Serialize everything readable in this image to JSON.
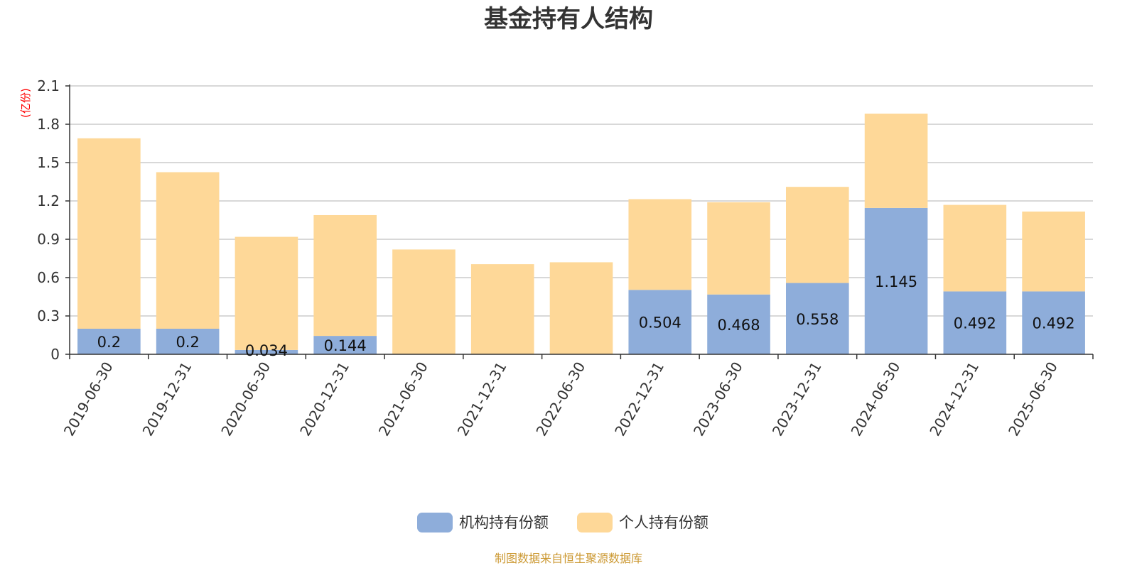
{
  "colors": {
    "institution": "#8eadda",
    "individual": "#fed898",
    "grid": "#cccccc",
    "axis": "#333333",
    "unit": "#ff0000",
    "source": "#cc9933"
  },
  "chart_data": {
    "type": "bar",
    "stacked": true,
    "title": "基金持有人结构",
    "ylabel": "(亿份)",
    "ylim": [
      0,
      2.1
    ],
    "yticks": [
      "0",
      "0.3",
      "0.6",
      "0.9",
      "1.2",
      "1.5",
      "1.8",
      "2.1"
    ],
    "grid": true,
    "legend_position": "bottom-center",
    "categories": [
      "2019-06-30",
      "2019-12-31",
      "2020-06-30",
      "2020-12-31",
      "2021-06-30",
      "2021-12-31",
      "2022-06-30",
      "2022-12-31",
      "2023-06-30",
      "2023-12-31",
      "2024-06-30",
      "2024-12-31",
      "2025-06-30"
    ],
    "series": [
      {
        "name": "机构持有份额",
        "values": [
          0.2,
          0.2,
          0.034,
          0.144,
          0,
          0,
          0,
          0.504,
          0.468,
          0.558,
          1.145,
          0.492,
          0.492
        ],
        "labels": [
          "0.2",
          "0.2",
          "0.034",
          "0.144",
          "",
          "",
          "",
          "0.504",
          "0.468",
          "0.558",
          "1.145",
          "0.492",
          "0.492"
        ]
      },
      {
        "name": "个人持有份额",
        "values": [
          1.49,
          1.225,
          0.885,
          0.945,
          0.82,
          0.705,
          0.72,
          0.71,
          0.722,
          0.752,
          0.738,
          0.677,
          0.625
        ]
      }
    ]
  },
  "source_note": "制图数据来自恒生聚源数据库"
}
